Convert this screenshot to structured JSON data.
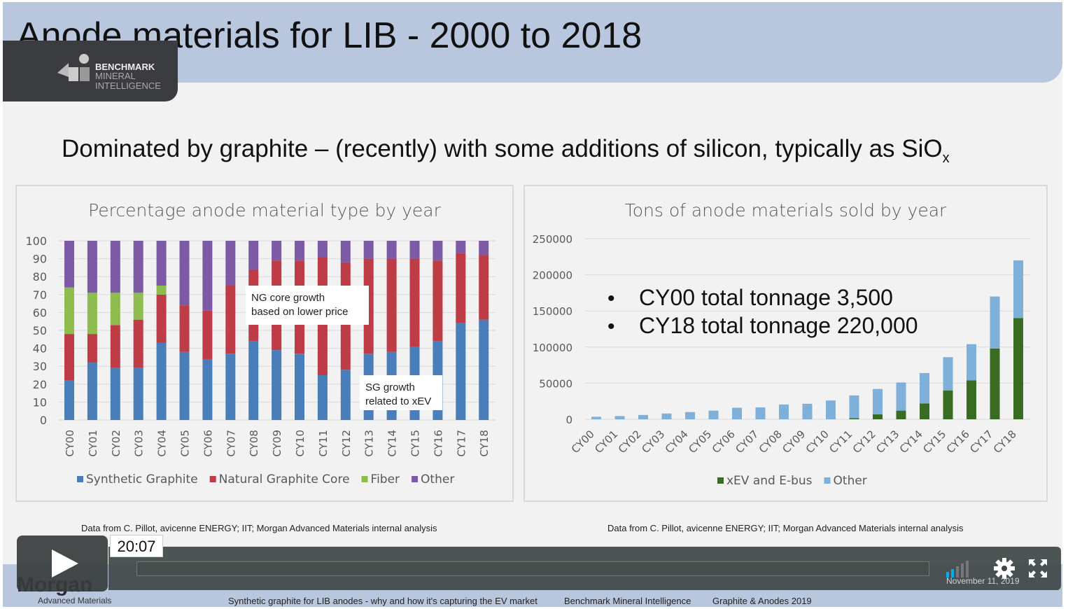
{
  "slide": {
    "title": "Anode materials for LIB - 2000 to 2018",
    "subtitle": "Dominated by graphite – (recently) with some additions of silicon, typically as SiO",
    "subtitle_sub": "x",
    "logo": {
      "line1": "BENCHMARK",
      "line2": "MINERAL",
      "line3": "INTELLIGENCE"
    },
    "source_left": "Data from C. Pillot, avicenne ENERGY; IIT; Morgan Advanced Materials internal analysis",
    "source_right": "Data from C. Pillot, avicenne ENERGY; IIT; Morgan Advanced Materials internal analysis",
    "footer": {
      "company": "Morgan",
      "company_sub": "Advanced Materials",
      "talk": "Synthetic graphite for LIB anodes - why and how it's capturing the EV market",
      "org": "Benchmark Mineral Intelligence",
      "event": "Graphite & Anodes 2019",
      "date": "November 11, 2019"
    }
  },
  "player": {
    "time": "20:07",
    "icons": [
      "play-icon",
      "quality-bars-icon",
      "gear-icon",
      "fullscreen-icon"
    ],
    "accent": "#00adef"
  },
  "chart_data": [
    {
      "type": "bar",
      "stacked": true,
      "title": "Percentage anode material type by year",
      "ylim": [
        0,
        100
      ],
      "yticks": [
        0,
        10,
        20,
        30,
        40,
        50,
        60,
        70,
        80,
        90,
        100
      ],
      "grid": true,
      "legend": "bottom",
      "categories": [
        "CY00",
        "CY01",
        "CY02",
        "CY03",
        "CY04",
        "CY05",
        "CY06",
        "CY07",
        "CY08",
        "CY09",
        "CY10",
        "CY11",
        "CY12",
        "CY13",
        "CY14",
        "CY15",
        "CY16",
        "CY17",
        "CY18"
      ],
      "series": [
        {
          "name": "Synthetic Graphite",
          "color": "#4a7ebb",
          "values": [
            22,
            32,
            29,
            29,
            43,
            38,
            34,
            37,
            44,
            39,
            37,
            25,
            28,
            37,
            38,
            41,
            44,
            54,
            56
          ]
        },
        {
          "name": "Natural Graphite Core",
          "color": "#be3c46",
          "values": [
            26,
            16,
            24,
            27,
            27,
            26,
            27,
            38,
            40,
            50,
            52,
            66,
            60,
            53,
            52,
            49,
            45,
            39,
            36
          ]
        },
        {
          "name": "Fiber",
          "color": "#8fbc4f",
          "values": [
            26,
            23,
            18,
            15,
            5,
            0,
            0,
            0,
            0,
            0,
            0,
            0,
            0,
            0,
            0,
            0,
            0,
            0,
            0
          ]
        },
        {
          "name": "Other",
          "color": "#7d5aa6",
          "values": [
            26,
            29,
            29,
            29,
            25,
            36,
            39,
            25,
            16,
            11,
            11,
            9,
            12,
            10,
            10,
            10,
            11,
            7,
            8
          ]
        }
      ],
      "annotations": [
        "NG core growth\nbased on lower price",
        "SG growth\nrelated to xEV"
      ]
    },
    {
      "type": "bar",
      "stacked": true,
      "title": "Tons of anode materials sold by year",
      "ylim": [
        0,
        250000
      ],
      "yticks": [
        0,
        50000,
        100000,
        150000,
        200000,
        250000
      ],
      "grid": true,
      "legend": "bottom",
      "categories": [
        "CY00",
        "CY01",
        "CY02",
        "CY03",
        "CY04",
        "CY05",
        "CY06",
        "CY07",
        "CY08",
        "CY09",
        "CY10",
        "CY11",
        "CY12",
        "CY13",
        "CY14",
        "CY15",
        "CY16",
        "CY17",
        "CY18"
      ],
      "series": [
        {
          "name": "xEV and E-bus",
          "color": "#3a6b23",
          "values": [
            0,
            0,
            0,
            0,
            0,
            0,
            0,
            0,
            0,
            0,
            0,
            1500,
            7000,
            12000,
            22000,
            40000,
            54000,
            98000,
            140000
          ]
        },
        {
          "name": "Other",
          "color": "#7fb0da",
          "values": [
            3500,
            4500,
            6000,
            8000,
            10000,
            12000,
            16000,
            16500,
            20500,
            21500,
            26000,
            31500,
            35000,
            39000,
            42000,
            46000,
            50000,
            72000,
            80000
          ]
        }
      ],
      "annotations": [
        "CY00 total tonnage 3,500",
        "CY18 total tonnage 220,000"
      ]
    }
  ]
}
